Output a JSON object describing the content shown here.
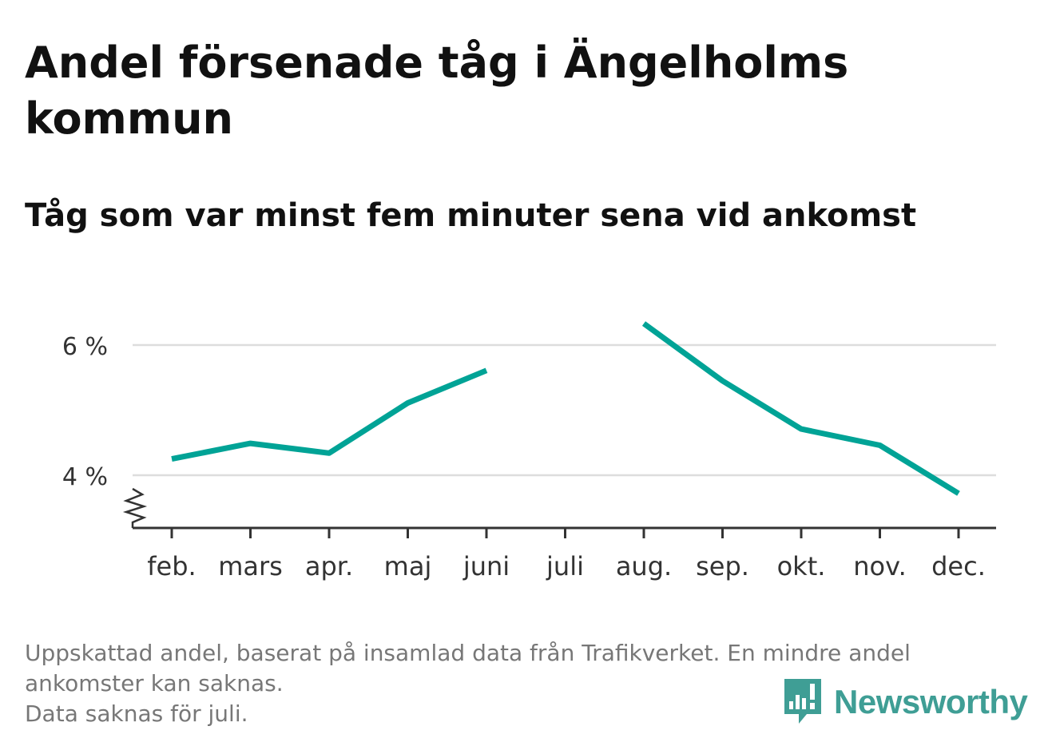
{
  "title": "Andel försenade tåg i Ängelholms kommun",
  "subtitle": "Tåg som var minst fem minuter sena vid ankomst",
  "footnote": {
    "line1": "Uppskattad andel, baserat på insamlad data från Trafikverket. En mindre andel",
    "line2": "ankomster kan saknas.",
    "line3": "Data saknas för juli."
  },
  "brand": {
    "name": "Newsworthy",
    "color": "#3f9e95",
    "icon": "newsworthy-logo-icon"
  },
  "colors": {
    "line": "#00a396",
    "grid": "#dddddd",
    "axis": "#333333",
    "text": "#333333"
  },
  "chart_data": {
    "type": "line",
    "categories": [
      "feb.",
      "mars",
      "apr.",
      "maj",
      "juni",
      "juli",
      "aug.",
      "sep.",
      "okt.",
      "nov.",
      "dec."
    ],
    "series": [
      {
        "values": [
          4.25,
          4.49,
          4.34,
          5.11,
          5.61,
          null,
          6.33,
          5.45,
          4.71,
          4.46,
          3.72
        ]
      }
    ],
    "yticks": [
      4,
      6
    ],
    "ytick_labels": [
      "4 %",
      "6 %"
    ],
    "ylim": [
      3.2,
      6.45
    ],
    "axis_break": true,
    "grid": true,
    "legend": "none"
  }
}
